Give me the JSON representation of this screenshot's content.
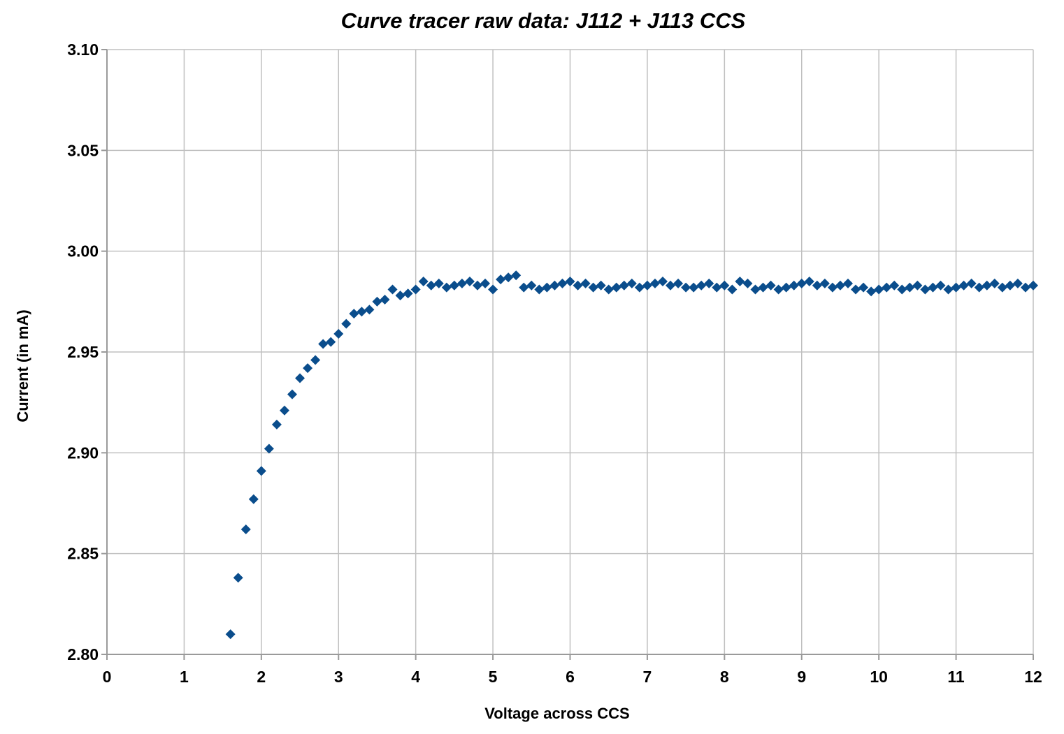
{
  "chart_data": {
    "type": "scatter",
    "title": "Curve tracer raw data: J112 + J113 CCS",
    "xlabel": "Voltage across CCS",
    "ylabel": "Current (in mA)",
    "xlim": [
      0,
      12
    ],
    "ylim": [
      2.8,
      3.1
    ],
    "x_ticks": [
      "0",
      "1",
      "2",
      "3",
      "4",
      "5",
      "6",
      "7",
      "8",
      "9",
      "10",
      "11",
      "12"
    ],
    "y_ticks": [
      "2.80",
      "2.85",
      "2.90",
      "2.95",
      "3.00",
      "3.05",
      "3.10"
    ],
    "grid": true,
    "legend": "none",
    "marker": "diamond",
    "color": "#0a4d8c",
    "series": [
      {
        "x": [
          1.6,
          1.7,
          1.8,
          1.9,
          2.0,
          2.1,
          2.2,
          2.3,
          2.4,
          2.5,
          2.6,
          2.7,
          2.8,
          2.9,
          3.0,
          3.1,
          3.2,
          3.3,
          3.4,
          3.5,
          3.6,
          3.7,
          3.8,
          3.9,
          4.0,
          4.1,
          4.2,
          4.3,
          4.4,
          4.5,
          4.6,
          4.7,
          4.8,
          4.9,
          5.0,
          5.1,
          5.2,
          5.3,
          5.4,
          5.5,
          5.6,
          5.7,
          5.8,
          5.9,
          6.0,
          6.1,
          6.2,
          6.3,
          6.4,
          6.5,
          6.6,
          6.7,
          6.8,
          6.9,
          7.0,
          7.1,
          7.2,
          7.3,
          7.4,
          7.5,
          7.6,
          7.7,
          7.8,
          7.9,
          8.0,
          8.1,
          8.2,
          8.3,
          8.4,
          8.5,
          8.6,
          8.7,
          8.8,
          8.9,
          9.0,
          9.1,
          9.2,
          9.3,
          9.4,
          9.5,
          9.6,
          9.7,
          9.8,
          9.9,
          10.0,
          10.1,
          10.2,
          10.3,
          10.4,
          10.5,
          10.6,
          10.7,
          10.8,
          10.9,
          11.0,
          11.1,
          11.2,
          11.3,
          11.4,
          11.5,
          11.6,
          11.7,
          11.8,
          11.9,
          12.0
        ],
        "y": [
          2.81,
          2.838,
          2.862,
          2.877,
          2.891,
          2.902,
          2.914,
          2.921,
          2.929,
          2.937,
          2.942,
          2.946,
          2.954,
          2.955,
          2.959,
          2.964,
          2.969,
          2.97,
          2.971,
          2.975,
          2.976,
          2.981,
          2.978,
          2.979,
          2.981,
          2.985,
          2.983,
          2.984,
          2.982,
          2.983,
          2.984,
          2.985,
          2.983,
          2.984,
          2.981,
          2.986,
          2.987,
          2.988,
          2.982,
          2.983,
          2.981,
          2.982,
          2.983,
          2.984,
          2.985,
          2.983,
          2.984,
          2.982,
          2.983,
          2.981,
          2.982,
          2.983,
          2.984,
          2.982,
          2.983,
          2.984,
          2.985,
          2.983,
          2.984,
          2.982,
          2.982,
          2.983,
          2.984,
          2.982,
          2.983,
          2.981,
          2.985,
          2.984,
          2.981,
          2.982,
          2.983,
          2.981,
          2.982,
          2.983,
          2.984,
          2.985,
          2.983,
          2.984,
          2.982,
          2.983,
          2.984,
          2.981,
          2.982,
          2.98,
          2.981,
          2.982,
          2.983,
          2.981,
          2.982,
          2.983,
          2.981,
          2.982,
          2.983,
          2.981,
          2.982,
          2.983,
          2.984,
          2.982,
          2.983,
          2.984,
          2.982,
          2.983,
          2.984,
          2.982,
          2.983
        ]
      }
    ]
  }
}
